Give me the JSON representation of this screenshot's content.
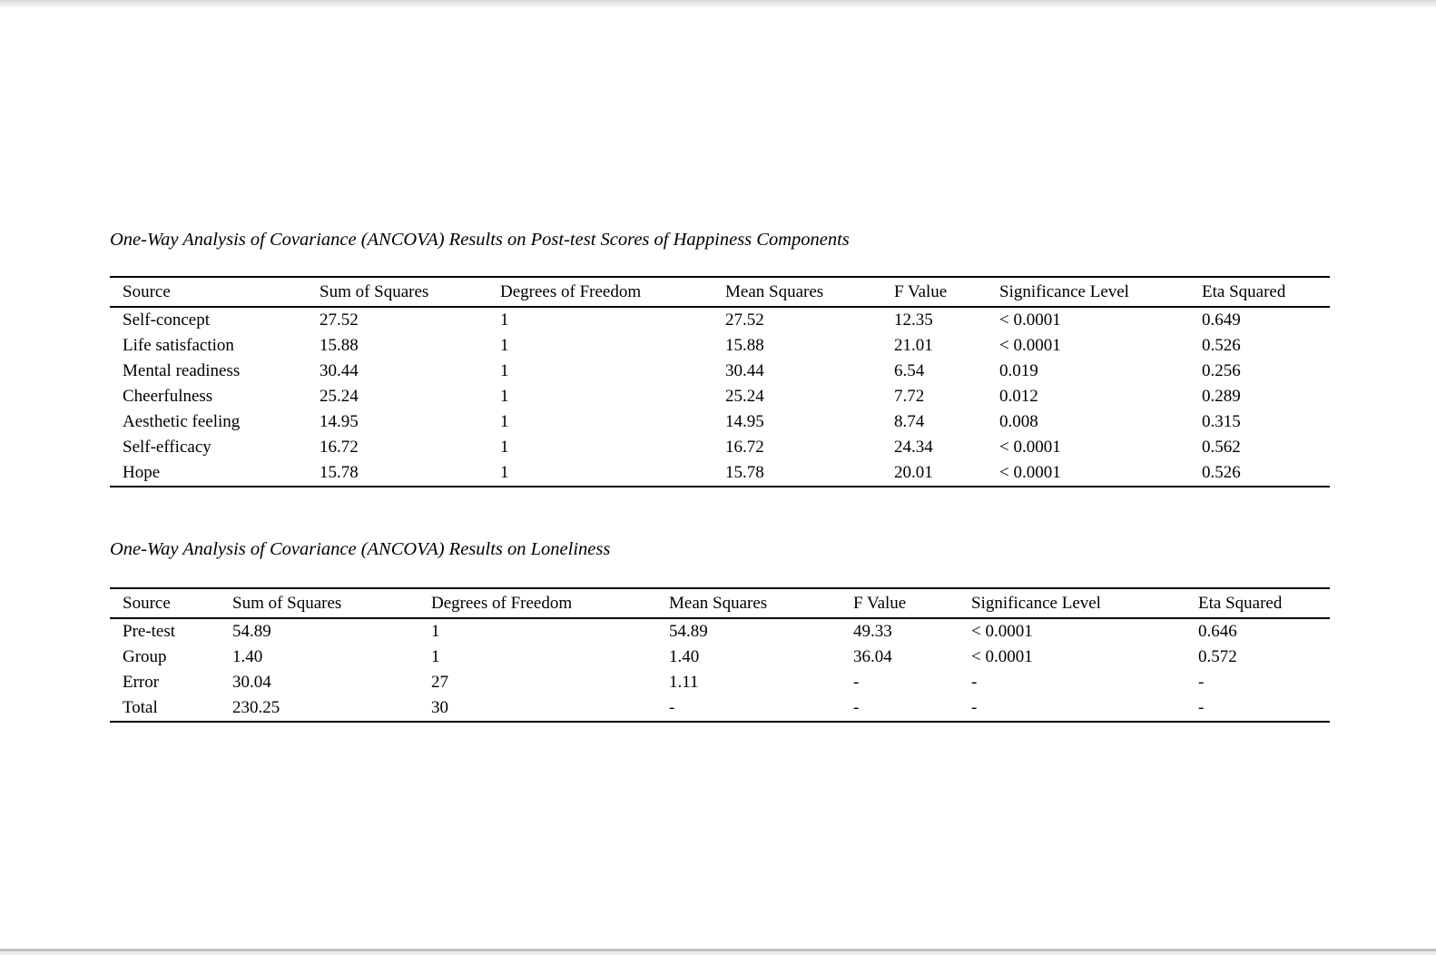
{
  "page": {
    "background": "#ffffff",
    "text_color": "#000000",
    "rule_color": "#000000"
  },
  "tables": [
    {
      "caption": "One-Way Analysis of Covariance (ANCOVA) Results on Post-test Scores of Happiness Components",
      "headers": [
        "Source",
        "Sum of Squares",
        "Degrees of Freedom",
        "Mean Squares",
        "F Value",
        "Significance Level",
        "Eta Squared"
      ],
      "rows": [
        [
          "Self-concept",
          "27.52",
          "1",
          "27.52",
          "12.35",
          "< 0.0001",
          "0.649"
        ],
        [
          "Life satisfaction",
          "15.88",
          "1",
          "15.88",
          "21.01",
          "< 0.0001",
          "0.526"
        ],
        [
          "Mental readiness",
          "30.44",
          "1",
          "30.44",
          "6.54",
          "0.019",
          "0.256"
        ],
        [
          "Cheerfulness",
          "25.24",
          "1",
          "25.24",
          "7.72",
          "0.012",
          "0.289"
        ],
        [
          "Aesthetic feeling",
          "14.95",
          "1",
          "14.95",
          "8.74",
          "0.008",
          "0.315"
        ],
        [
          "Self-efficacy",
          "16.72",
          "1",
          "16.72",
          "24.34",
          "< 0.0001",
          "0.562"
        ],
        [
          "Hope",
          "15.78",
          "1",
          "15.78",
          "20.01",
          "< 0.0001",
          "0.526"
        ]
      ]
    },
    {
      "caption": "One-Way Analysis of Covariance (ANCOVA) Results on Loneliness",
      "headers": [
        "Source",
        "Sum of Squares",
        "Degrees of Freedom",
        "Mean Squares",
        "F Value",
        "Significance Level",
        "Eta Squared"
      ],
      "rows": [
        [
          "Pre-test",
          "54.89",
          "1",
          "54.89",
          "49.33",
          "< 0.0001",
          "0.646"
        ],
        [
          "Group",
          "1.40",
          "1",
          "1.40",
          "36.04",
          "< 0.0001",
          "0.572"
        ],
        [
          "Error",
          "30.04",
          "27",
          "1.11",
          "-",
          "-",
          "-"
        ],
        [
          "Total",
          "230.25",
          "30",
          "-",
          "-",
          "-",
          "-"
        ]
      ]
    }
  ]
}
